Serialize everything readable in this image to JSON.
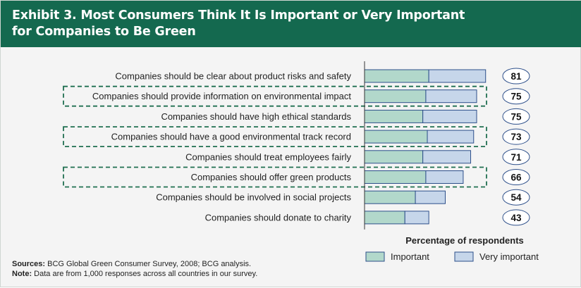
{
  "header": {
    "title_line1": "Exhibit 3. Most Consumers Think It Is Important or Very Important",
    "title_line2": "for Companies to Be Green"
  },
  "colors": {
    "header_bg": "#14694f",
    "important": "#b2d8cb",
    "very_important": "#c6d6ea",
    "bar_stroke": "#2d4f8a",
    "highlight_dash": "#1f6f50"
  },
  "chart_data": {
    "type": "bar",
    "orientation": "horizontal",
    "stacked": true,
    "categories": [
      "Companies should be clear about product risks and safety",
      "Companies should provide information on environmental impact",
      "Companies should have high ethical standards",
      "Companies should have a good environmental track record",
      "Companies should treat employees fairly",
      "Companies should offer green products",
      "Companies should be involved in social projects",
      "Companies should donate to charity"
    ],
    "series": [
      {
        "name": "Important",
        "values": [
          43,
          41,
          39,
          42,
          39,
          41,
          34,
          27
        ]
      },
      {
        "name": "Very important",
        "values": [
          38,
          34,
          36,
          31,
          32,
          25,
          20,
          16
        ]
      }
    ],
    "totals": [
      81,
      75,
      75,
      73,
      71,
      66,
      54,
      43
    ],
    "highlighted": [
      false,
      true,
      false,
      true,
      false,
      true,
      false,
      false
    ],
    "xlabel": "Percentage of respondents",
    "xlim": [
      0,
      100
    ],
    "legend_position": "bottom-right"
  },
  "footer": {
    "sources_label": "Sources:",
    "sources_text": "BCG Global Green Consumer Survey, 2008; BCG analysis.",
    "note_label": "Note:",
    "note_text": "Data are from 1,000 responses across all countries in our survey."
  }
}
